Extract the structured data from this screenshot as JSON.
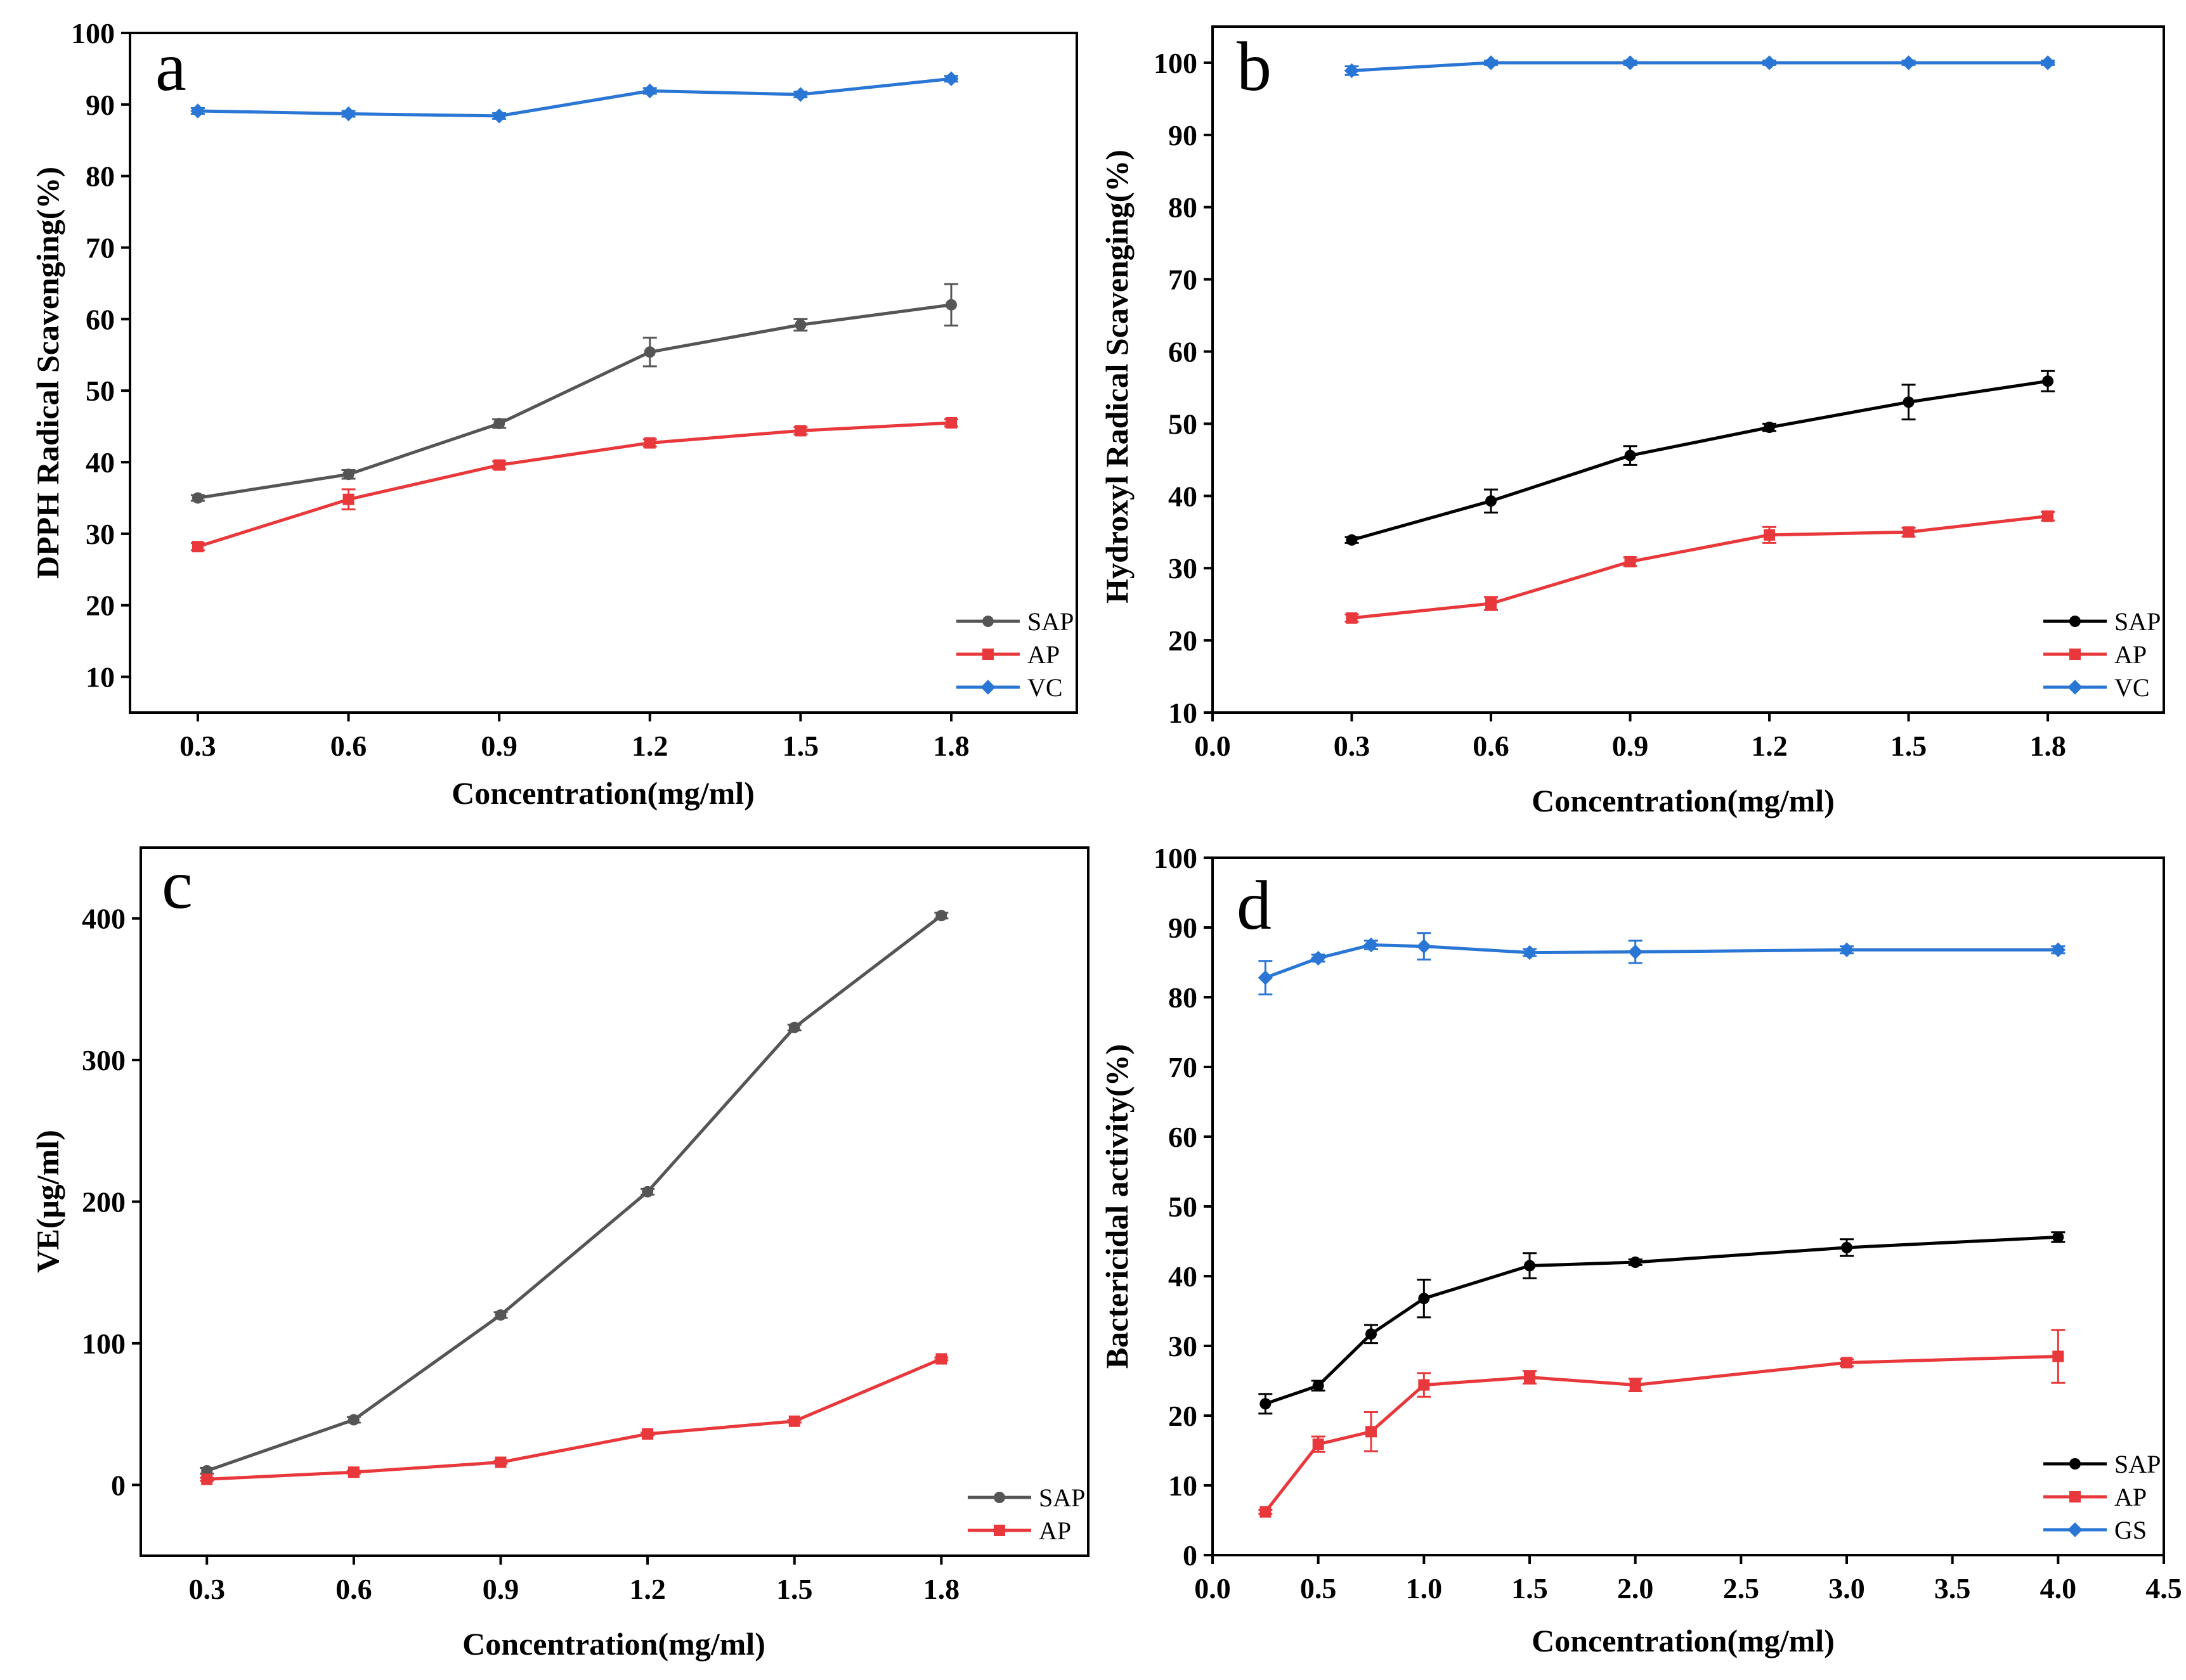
{
  "chart_data": [
    {
      "panel": "a",
      "type": "line",
      "xlabel": "Concentration(mg/ml)",
      "ylabel": "DPPH Radical Scavenging(%)",
      "xlim": [
        0.165,
        2.05
      ],
      "ylim": [
        5,
        100
      ],
      "xticks": [
        0.3,
        0.6,
        0.9,
        1.2,
        1.5,
        1.8
      ],
      "xtick_labels": [
        "0.3",
        "0.6",
        "0.9",
        "1.2",
        "1.5",
        "1.8"
      ],
      "yticks": [
        10,
        20,
        30,
        40,
        50,
        60,
        70,
        80,
        90,
        100
      ],
      "ytick_labels": [
        "10",
        "20",
        "30",
        "40",
        "50",
        "60",
        "70",
        "80",
        "90",
        "100"
      ],
      "legend": "bottom-right",
      "series": [
        {
          "name": "SAP",
          "color": "#555555",
          "marker": "circle",
          "x": [
            0.3,
            0.6,
            0.9,
            1.2,
            1.5,
            1.8
          ],
          "values": [
            35.0,
            38.3,
            45.4,
            55.4,
            59.2,
            62.0
          ],
          "errors": [
            0.4,
            0.6,
            0.6,
            2.0,
            0.8,
            2.9
          ]
        },
        {
          "name": "AP",
          "color": "#e8383b",
          "marker": "square",
          "x": [
            0.3,
            0.6,
            0.9,
            1.2,
            1.5,
            1.8
          ],
          "values": [
            28.2,
            34.8,
            39.6,
            42.7,
            44.4,
            45.5
          ],
          "errors": [
            0.5,
            1.4,
            0.5,
            0.5,
            0.5,
            0.5
          ]
        },
        {
          "name": "VC",
          "color": "#2a76d4",
          "marker": "diamond",
          "x": [
            0.3,
            0.6,
            0.9,
            1.2,
            1.5,
            1.8
          ],
          "values": [
            89.1,
            88.7,
            88.4,
            91.9,
            91.4,
            93.6
          ],
          "errors": [
            0.4,
            0.4,
            0.4,
            0.4,
            0.4,
            0.4
          ]
        }
      ]
    },
    {
      "panel": "b",
      "type": "line",
      "xlabel": "Concentration(mg/ml)",
      "ylabel": "Hydroxyl Radical Scavenging(%)",
      "xlim": [
        0.0,
        2.05
      ],
      "ylim": [
        10,
        105
      ],
      "xticks": [
        0.0,
        0.3,
        0.6,
        0.9,
        1.2,
        1.5,
        1.8
      ],
      "xtick_labels": [
        "0.0",
        "0.3",
        "0.6",
        "0.9",
        "1.2",
        "1.5",
        "1.8"
      ],
      "yticks": [
        10,
        20,
        30,
        40,
        50,
        60,
        70,
        80,
        90,
        100
      ],
      "ytick_labels": [
        "10",
        "20",
        "30",
        "40",
        "50",
        "60",
        "70",
        "80",
        "90",
        "100"
      ],
      "legend": "bottom-right",
      "series": [
        {
          "name": "SAP",
          "color": "#000000",
          "marker": "circle",
          "x": [
            0.3,
            0.6,
            0.9,
            1.2,
            1.5,
            1.8
          ],
          "values": [
            33.9,
            39.3,
            45.6,
            49.5,
            53.0,
            55.9
          ],
          "errors": [
            0.4,
            1.6,
            1.3,
            0.5,
            2.4,
            1.4
          ]
        },
        {
          "name": "AP",
          "color": "#e8383b",
          "marker": "square",
          "x": [
            0.3,
            0.6,
            0.9,
            1.2,
            1.5,
            1.8
          ],
          "values": [
            23.1,
            25.1,
            30.9,
            34.6,
            35.0,
            37.2
          ],
          "errors": [
            0.5,
            0.9,
            0.6,
            1.1,
            0.6,
            0.6
          ]
        },
        {
          "name": "VC",
          "color": "#2a76d4",
          "marker": "diamond",
          "x": [
            0.3,
            0.6,
            0.9,
            1.2,
            1.5,
            1.8
          ],
          "values": [
            98.9,
            100.0,
            100.0,
            100.0,
            100.0,
            100.0
          ],
          "errors": [
            0.6,
            0.3,
            0.3,
            0.3,
            0.3,
            0.3
          ]
        }
      ]
    },
    {
      "panel": "c",
      "type": "line",
      "xlabel": "Concentration(mg/ml)",
      "ylabel": "VE(μg/ml)",
      "xlim": [
        0.165,
        2.1
      ],
      "ylim": [
        -50,
        450
      ],
      "xticks": [
        0.3,
        0.6,
        0.9,
        1.2,
        1.5,
        1.8
      ],
      "xtick_labels": [
        "0.3",
        "0.6",
        "0.9",
        "1.2",
        "1.5",
        "1.8"
      ],
      "yticks": [
        0,
        100,
        200,
        300,
        400
      ],
      "ytick_labels": [
        "0",
        "100",
        "200",
        "300",
        "400"
      ],
      "legend": "bottom-right",
      "series": [
        {
          "name": "SAP",
          "color": "#555555",
          "marker": "circle",
          "x": [
            0.3,
            0.6,
            0.9,
            1.2,
            1.5,
            1.8
          ],
          "values": [
            10,
            46,
            120,
            207,
            323,
            402
          ],
          "errors": [
            2,
            2,
            2,
            2,
            2,
            2
          ]
        },
        {
          "name": "AP",
          "color": "#e8383b",
          "marker": "square",
          "x": [
            0.3,
            0.6,
            0.9,
            1.2,
            1.5,
            1.8
          ],
          "values": [
            4,
            9,
            16,
            36,
            45,
            89
          ],
          "errors": [
            1,
            1,
            1,
            1,
            1,
            1
          ]
        }
      ]
    },
    {
      "panel": "d",
      "type": "line",
      "xlabel": "Concentration(mg/ml)",
      "ylabel": "Bactericidal activity(%)",
      "xlim": [
        0.0,
        4.5
      ],
      "ylim": [
        0,
        100
      ],
      "xticks": [
        0.0,
        0.5,
        1.0,
        1.5,
        2.0,
        2.5,
        3.0,
        3.5,
        4.0,
        4.5
      ],
      "xtick_labels": [
        "0.0",
        "0.5",
        "1.0",
        "1.5",
        "2.0",
        "2.5",
        "3.0",
        "3.5",
        "4.0",
        "4.5"
      ],
      "yticks": [
        0,
        10,
        20,
        30,
        40,
        50,
        60,
        70,
        80,
        90,
        100
      ],
      "ytick_labels": [
        "0",
        "10",
        "20",
        "30",
        "40",
        "50",
        "60",
        "70",
        "80",
        "90",
        "100"
      ],
      "legend": "bottom-right",
      "series": [
        {
          "name": "SAP",
          "color": "#000000",
          "marker": "circle",
          "x": [
            0.25,
            0.5,
            0.75,
            1.0,
            1.5,
            2.0,
            3.0,
            4.0
          ],
          "values": [
            21.7,
            24.3,
            31.7,
            36.8,
            41.5,
            42.0,
            44.1,
            45.6
          ],
          "errors": [
            1.4,
            0.7,
            1.3,
            2.7,
            1.8,
            0.4,
            1.2,
            0.7
          ]
        },
        {
          "name": "AP",
          "color": "#e8383b",
          "marker": "square",
          "x": [
            0.25,
            0.5,
            0.75,
            1.0,
            1.5,
            2.0,
            3.0,
            4.0
          ],
          "values": [
            6.2,
            15.9,
            17.7,
            24.4,
            25.5,
            24.4,
            27.6,
            28.5
          ],
          "errors": [
            0.3,
            1.1,
            2.8,
            1.7,
            0.9,
            0.9,
            0.5,
            3.8
          ]
        },
        {
          "name": "GS",
          "color": "#2a76d4",
          "marker": "diamond",
          "x": [
            0.25,
            0.5,
            0.75,
            1.0,
            1.5,
            2.0,
            3.0,
            4.0
          ],
          "values": [
            82.8,
            85.6,
            87.5,
            87.3,
            86.4,
            86.5,
            86.8,
            86.8
          ],
          "errors": [
            2.4,
            0.5,
            0.6,
            1.9,
            0.5,
            1.6,
            0.5,
            0.5
          ]
        }
      ]
    }
  ]
}
